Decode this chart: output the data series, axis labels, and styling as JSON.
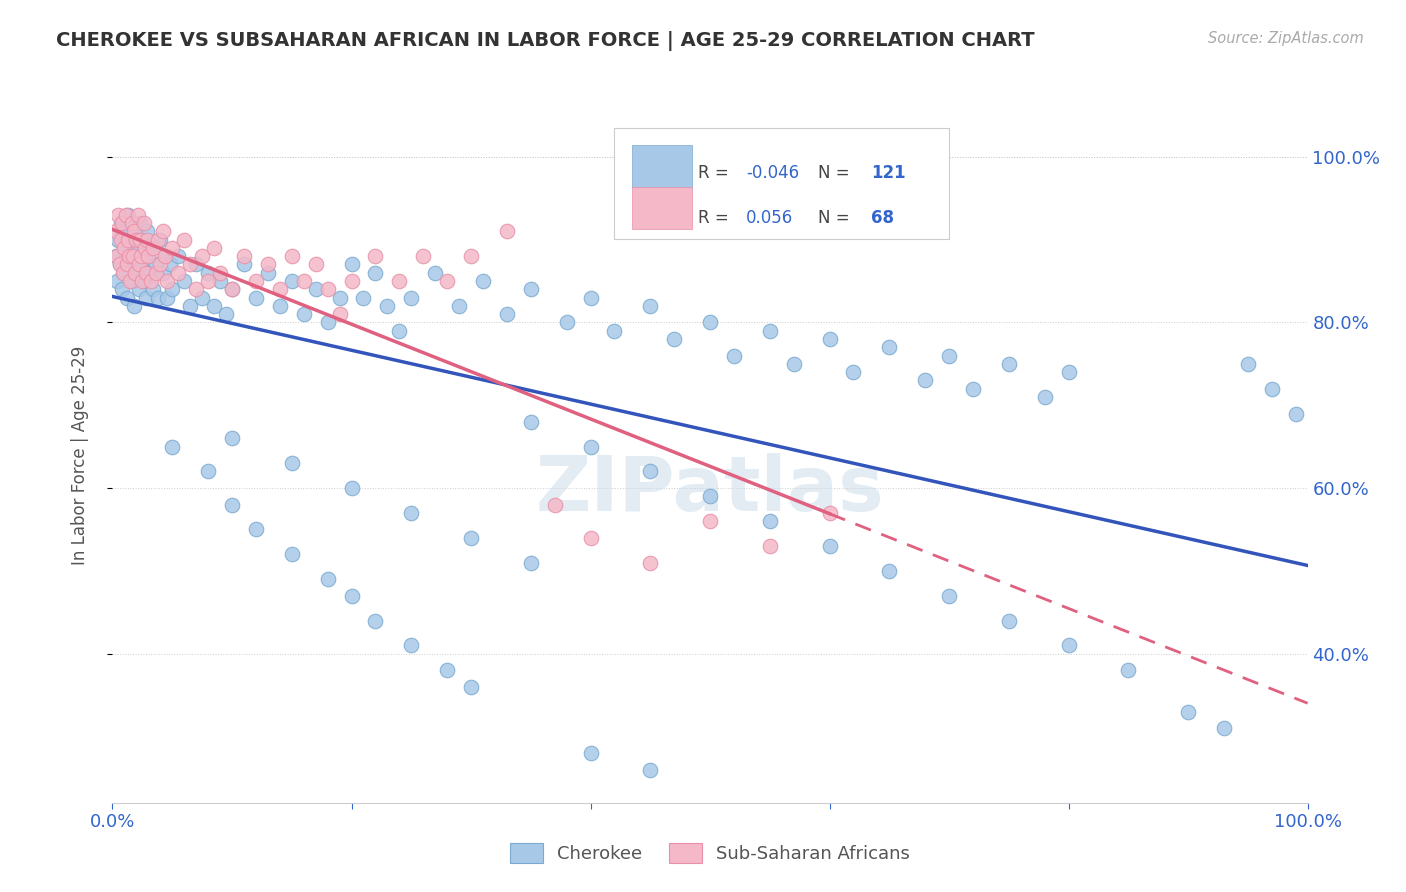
{
  "title": "CHEROKEE VS SUBSAHARAN AFRICAN IN LABOR FORCE | AGE 25-29 CORRELATION CHART",
  "source": "Source: ZipAtlas.com",
  "ylabel": "In Labor Force | Age 25-29",
  "xlim": [
    0.0,
    1.0
  ],
  "ylim": [
    0.22,
    1.06
  ],
  "yticks": [
    0.4,
    0.6,
    0.8,
    1.0
  ],
  "ytick_labels": [
    "40.0%",
    "60.0%",
    "80.0%",
    "100.0%"
  ],
  "xticks": [
    0.0,
    0.2,
    0.4,
    0.6,
    0.8,
    1.0
  ],
  "xtick_labels": [
    "0.0%",
    "",
    "",
    "",
    "",
    "100.0%"
  ],
  "cherokee_color": "#a8c8e8",
  "subsaharan_color": "#f4b8c8",
  "cherokee_edge": "#7aaad0",
  "subsaharan_edge": "#e890a8",
  "trend_cherokee": "#3355bb",
  "trend_subsaharan": "#e06080",
  "R_cherokee": -0.046,
  "N_cherokee": 121,
  "R_subsaharan": 0.056,
  "N_subsaharan": 68,
  "watermark": "ZIPatlas",
  "background_color": "#ffffff",
  "legend_labels": [
    "Cherokee",
    "Sub-Saharan Africans"
  ],
  "cherokee_x": [
    0.003,
    0.004,
    0.005,
    0.006,
    0.007,
    0.008,
    0.009,
    0.01,
    0.011,
    0.012,
    0.013,
    0.014,
    0.015,
    0.016,
    0.017,
    0.018,
    0.019,
    0.02,
    0.021,
    0.022,
    0.023,
    0.024,
    0.025,
    0.026,
    0.027,
    0.028,
    0.029,
    0.03,
    0.032,
    0.034,
    0.036,
    0.038,
    0.04,
    0.042,
    0.044,
    0.046,
    0.048,
    0.05,
    0.055,
    0.06,
    0.065,
    0.07,
    0.075,
    0.08,
    0.085,
    0.09,
    0.095,
    0.1,
    0.11,
    0.12,
    0.13,
    0.14,
    0.15,
    0.16,
    0.17,
    0.18,
    0.19,
    0.2,
    0.21,
    0.22,
    0.23,
    0.24,
    0.25,
    0.27,
    0.29,
    0.31,
    0.33,
    0.35,
    0.38,
    0.4,
    0.42,
    0.45,
    0.47,
    0.5,
    0.52,
    0.55,
    0.57,
    0.6,
    0.62,
    0.65,
    0.68,
    0.7,
    0.72,
    0.75,
    0.78,
    0.8,
    0.05,
    0.08,
    0.1,
    0.12,
    0.15,
    0.18,
    0.2,
    0.22,
    0.25,
    0.28,
    0.3,
    0.35,
    0.4,
    0.45,
    0.5,
    0.55,
    0.6,
    0.65,
    0.7,
    0.75,
    0.8,
    0.85,
    0.9,
    0.93,
    0.95,
    0.97,
    0.99,
    0.1,
    0.15,
    0.2,
    0.25,
    0.3,
    0.35,
    0.4,
    0.45
  ],
  "cherokee_y": [
    0.88,
    0.85,
    0.9,
    0.87,
    0.92,
    0.84,
    0.91,
    0.86,
    0.89,
    0.83,
    0.93,
    0.87,
    0.9,
    0.85,
    0.88,
    0.82,
    0.91,
    0.86,
    0.89,
    0.84,
    0.92,
    0.87,
    0.9,
    0.85,
    0.88,
    0.83,
    0.91,
    0.86,
    0.89,
    0.84,
    0.87,
    0.83,
    0.9,
    0.86,
    0.88,
    0.83,
    0.87,
    0.84,
    0.88,
    0.85,
    0.82,
    0.87,
    0.83,
    0.86,
    0.82,
    0.85,
    0.81,
    0.84,
    0.87,
    0.83,
    0.86,
    0.82,
    0.85,
    0.81,
    0.84,
    0.8,
    0.83,
    0.87,
    0.83,
    0.86,
    0.82,
    0.79,
    0.83,
    0.86,
    0.82,
    0.85,
    0.81,
    0.84,
    0.8,
    0.83,
    0.79,
    0.82,
    0.78,
    0.8,
    0.76,
    0.79,
    0.75,
    0.78,
    0.74,
    0.77,
    0.73,
    0.76,
    0.72,
    0.75,
    0.71,
    0.74,
    0.65,
    0.62,
    0.58,
    0.55,
    0.52,
    0.49,
    0.47,
    0.44,
    0.41,
    0.38,
    0.36,
    0.68,
    0.65,
    0.62,
    0.59,
    0.56,
    0.53,
    0.5,
    0.47,
    0.44,
    0.41,
    0.38,
    0.33,
    0.31,
    0.75,
    0.72,
    0.69,
    0.66,
    0.63,
    0.6,
    0.57,
    0.54,
    0.51,
    0.28,
    0.26
  ],
  "subsaharan_x": [
    0.003,
    0.004,
    0.005,
    0.006,
    0.007,
    0.008,
    0.009,
    0.01,
    0.011,
    0.012,
    0.013,
    0.014,
    0.015,
    0.016,
    0.017,
    0.018,
    0.019,
    0.02,
    0.021,
    0.022,
    0.023,
    0.024,
    0.025,
    0.026,
    0.027,
    0.028,
    0.029,
    0.03,
    0.032,
    0.034,
    0.036,
    0.038,
    0.04,
    0.042,
    0.044,
    0.046,
    0.05,
    0.055,
    0.06,
    0.065,
    0.07,
    0.075,
    0.08,
    0.085,
    0.09,
    0.1,
    0.11,
    0.12,
    0.13,
    0.14,
    0.15,
    0.16,
    0.17,
    0.18,
    0.19,
    0.2,
    0.22,
    0.24,
    0.26,
    0.28,
    0.3,
    0.33,
    0.37,
    0.4,
    0.45,
    0.5,
    0.55,
    0.6
  ],
  "subsaharan_y": [
    0.91,
    0.88,
    0.93,
    0.87,
    0.9,
    0.92,
    0.86,
    0.89,
    0.93,
    0.87,
    0.9,
    0.88,
    0.85,
    0.92,
    0.88,
    0.91,
    0.86,
    0.9,
    0.93,
    0.87,
    0.9,
    0.88,
    0.85,
    0.92,
    0.89,
    0.86,
    0.9,
    0.88,
    0.85,
    0.89,
    0.86,
    0.9,
    0.87,
    0.91,
    0.88,
    0.85,
    0.89,
    0.86,
    0.9,
    0.87,
    0.84,
    0.88,
    0.85,
    0.89,
    0.86,
    0.84,
    0.88,
    0.85,
    0.87,
    0.84,
    0.88,
    0.85,
    0.87,
    0.84,
    0.81,
    0.85,
    0.88,
    0.85,
    0.88,
    0.85,
    0.88,
    0.91,
    0.58,
    0.54,
    0.51,
    0.56,
    0.53,
    0.57
  ]
}
